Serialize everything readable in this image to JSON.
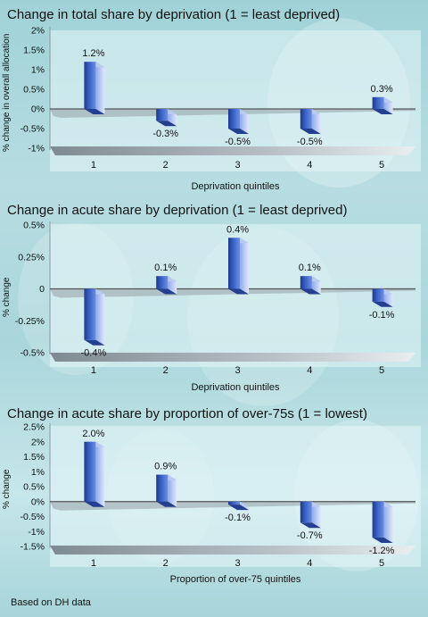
{
  "footer": "Based on DH data",
  "chart_data": [
    {
      "type": "bar",
      "title": "Change in total share by deprivation (1 = least deprived)",
      "xlabel": "Deprivation quintiles",
      "ylabel": "% change in overall allocation",
      "categories": [
        "1",
        "2",
        "3",
        "4",
        "5"
      ],
      "values": [
        1.2,
        -0.3,
        -0.5,
        -0.5,
        0.3
      ],
      "value_labels": [
        "1.2%",
        "-0.3%",
        "-0.5%",
        "-0.5%",
        "0.3%"
      ],
      "y_ticks": [
        2,
        1.5,
        1,
        0.5,
        0,
        -0.5,
        -1
      ],
      "y_tick_labels": [
        "2%",
        "1.5%",
        "1%",
        "0.5%",
        "0%",
        "-0.5%",
        "-1%"
      ],
      "ylim": [
        -1,
        2
      ],
      "grid": false,
      "legend": "none",
      "bar_color": "#2d4fa3"
    },
    {
      "type": "bar",
      "title": "Change in acute share by deprivation (1 = least deprived)",
      "xlabel": "Deprivation quintiles",
      "ylabel": "% change",
      "categories": [
        "1",
        "2",
        "3",
        "4",
        "5"
      ],
      "values": [
        -0.4,
        0.1,
        0.4,
        0.1,
        -0.1
      ],
      "value_labels": [
        "-0.4%",
        "0.1%",
        "0.4%",
        "0.1%",
        "-0.1%"
      ],
      "y_ticks": [
        0.5,
        0.25,
        0,
        -0.25,
        -0.5
      ],
      "y_tick_labels": [
        "0.5%",
        "0.25%",
        "0",
        "-0.25%",
        "-0.5%"
      ],
      "ylim": [
        -0.5,
        0.5
      ],
      "grid": false,
      "legend": "none",
      "bar_color": "#2d4fa3"
    },
    {
      "type": "bar",
      "title": "Change in acute share by proportion of over-75s (1 = lowest)",
      "xlabel": "Proportion of over-75 quintiles",
      "ylabel": "% change",
      "categories": [
        "1",
        "2",
        "3",
        "4",
        "5"
      ],
      "values": [
        2.0,
        0.9,
        -0.1,
        -0.7,
        -1.2
      ],
      "value_labels": [
        "2.0%",
        "0.9%",
        "-0.1%",
        "-0.7%",
        "-1.2%"
      ],
      "y_ticks": [
        2.5,
        2,
        1.5,
        1,
        0.5,
        0,
        -0.5,
        -1,
        -1.5
      ],
      "y_tick_labels": [
        "2.5%",
        "2%",
        "1.5%",
        "1%",
        "0.5%",
        "0%",
        "-0.5%",
        "-1%",
        "-1.5%"
      ],
      "ylim": [
        -1.5,
        2.5
      ],
      "grid": false,
      "legend": "none",
      "bar_color": "#2d4fa3"
    }
  ]
}
